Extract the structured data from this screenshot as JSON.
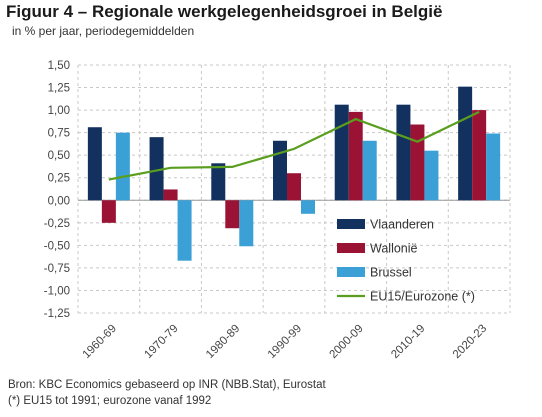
{
  "title": "Figuur 4 – Regionale werkgelegenheidsgroei in België",
  "subtitle": "in  % per jaar, periodegemiddelden",
  "source_lines": [
    "Bron: KBC Economics gebaseerd op INR (NBB.Stat), Eurostat",
    "(*) EU15 tot 1991; eurozone vanaf 1992"
  ],
  "chart_data": {
    "type": "bar",
    "categories": [
      "1960-69",
      "1970-79",
      "1980-89",
      "1990-99",
      "2000-09",
      "2010-19",
      "2020-23"
    ],
    "ylim": [
      -1.25,
      1.5
    ],
    "ytick_step": 0.25,
    "ytick_labels": [
      "1,50",
      "1,25",
      "1,00",
      "0,75",
      "0,50",
      "0,25",
      "0,00",
      "-0,25",
      "-0,50",
      "-0,75",
      "-1,00",
      "-1,25"
    ],
    "grid": true,
    "legend_position": "lower-right",
    "series": [
      {
        "name": "Vlaanderen",
        "kind": "bar",
        "color": "#12315e",
        "values": [
          0.81,
          0.7,
          0.41,
          0.66,
          1.06,
          1.06,
          1.26
        ]
      },
      {
        "name": "Wallonië",
        "kind": "bar",
        "color": "#9b1334",
        "values": [
          -0.25,
          0.12,
          -0.31,
          0.3,
          0.98,
          0.84,
          1.0
        ]
      },
      {
        "name": "Brussel",
        "kind": "bar",
        "color": "#3ba0d6",
        "values": [
          0.75,
          -0.67,
          -0.51,
          -0.15,
          0.66,
          0.55,
          0.74
        ]
      },
      {
        "name": "EU15/Eurozone (*)",
        "kind": "line",
        "color": "#5a9e1f",
        "values": [
          0.23,
          0.36,
          0.37,
          0.57,
          0.9,
          0.65,
          0.98
        ]
      }
    ]
  }
}
